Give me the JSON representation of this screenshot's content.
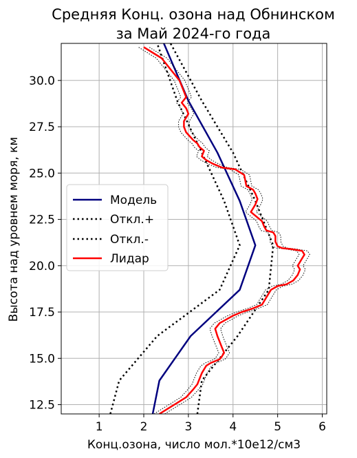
{
  "chart_data": {
    "type": "line",
    "title_lines": [
      "Средняя Конц. озона над Обнинском",
      "за Май 2024-го года"
    ],
    "xlabel": "Конц.озона, число мол.*10e12/см3",
    "ylabel": "Высота над уровнем моря, км",
    "xlim": [
      0.15,
      6.1
    ],
    "ylim": [
      12.0,
      32.0
    ],
    "xticks": [
      1,
      2,
      3,
      4,
      5,
      6
    ],
    "xtick_labels": [
      "1",
      "2",
      "3",
      "4",
      "5",
      "6"
    ],
    "yticks": [
      12.5,
      15.0,
      17.5,
      20.0,
      22.5,
      25.0,
      27.5,
      30.0
    ],
    "ytick_labels": [
      "12.5",
      "15.0",
      "17.5",
      "20.0",
      "22.5",
      "25.0",
      "27.5",
      "30.0"
    ],
    "grid": true,
    "legend_position": "center-left",
    "series": [
      {
        "name": "Модель",
        "color": "#00007f",
        "style": "solid",
        "x": [
          2.2,
          2.35,
          3.05,
          4.15,
          4.5,
          4.15,
          3.65,
          3.0,
          2.45
        ],
        "y": [
          12.0,
          13.8,
          16.2,
          18.7,
          21.1,
          23.5,
          26.1,
          28.9,
          32.0
        ]
      },
      {
        "name": "Откл.+",
        "color": "#000000",
        "style": "dotted",
        "x": [
          3.2,
          3.3,
          4.1,
          4.8,
          4.9,
          4.5,
          4.0,
          3.3,
          2.6
        ],
        "y": [
          12.0,
          13.8,
          16.2,
          18.7,
          21.1,
          23.5,
          26.1,
          28.9,
          32.0
        ]
      },
      {
        "name": "Откл.-",
        "color": "#000000",
        "style": "dotted",
        "x": [
          1.25,
          1.45,
          2.3,
          3.7,
          4.15,
          3.8,
          3.3,
          2.75,
          2.3
        ],
        "y": [
          12.0,
          13.8,
          16.2,
          18.7,
          21.1,
          23.5,
          26.1,
          28.9,
          32.0
        ]
      },
      {
        "name": "Лидар",
        "color": "#ff0000",
        "style": "solid",
        "envelope_color": "#000000",
        "envelope_offset": 0.12,
        "x": [
          2.35,
          2.55,
          2.75,
          2.95,
          3.1,
          3.2,
          3.25,
          3.3,
          3.35,
          3.4,
          3.5,
          3.6,
          3.7,
          3.75,
          3.8,
          3.75,
          3.7,
          3.65,
          3.6,
          3.7,
          3.85,
          4.0,
          4.2,
          4.45,
          4.65,
          4.75,
          4.85,
          5.0,
          5.2,
          5.35,
          5.45,
          5.5,
          5.45,
          5.5,
          5.55,
          5.6,
          5.55,
          5.3,
          5.1,
          5.0,
          4.95,
          4.95,
          4.9,
          4.75,
          4.7,
          4.65,
          4.5,
          4.4,
          4.45,
          4.5,
          4.55,
          4.5,
          4.45,
          4.3,
          4.25,
          4.05,
          3.75,
          3.55,
          3.4,
          3.3,
          3.35,
          3.25,
          3.2,
          3.1,
          2.95,
          2.9,
          2.9,
          3.0,
          2.95,
          2.85,
          2.95,
          2.9,
          2.85,
          2.8,
          2.7,
          2.6,
          2.5,
          2.4,
          2.2,
          2.0
        ],
        "y": [
          12.0,
          12.3,
          12.6,
          12.9,
          13.3,
          13.6,
          13.9,
          14.2,
          14.4,
          14.6,
          14.75,
          14.85,
          14.95,
          15.1,
          15.3,
          15.6,
          15.9,
          16.2,
          16.6,
          16.9,
          17.1,
          17.3,
          17.5,
          17.7,
          17.9,
          18.3,
          18.7,
          18.9,
          19.0,
          19.2,
          19.5,
          19.8,
          20.0,
          20.2,
          20.4,
          20.6,
          20.8,
          20.9,
          20.95,
          21.05,
          21.3,
          21.6,
          21.8,
          21.9,
          22.1,
          22.4,
          22.7,
          22.9,
          23.1,
          23.3,
          23.6,
          23.9,
          24.1,
          24.3,
          24.9,
          25.2,
          25.3,
          25.5,
          25.7,
          25.9,
          26.2,
          26.4,
          26.6,
          26.8,
          27.2,
          27.5,
          27.8,
          28.2,
          28.5,
          28.8,
          29.1,
          29.4,
          29.7,
          30.0,
          30.3,
          30.6,
          30.9,
          31.2,
          31.5,
          31.8
        ]
      }
    ]
  }
}
